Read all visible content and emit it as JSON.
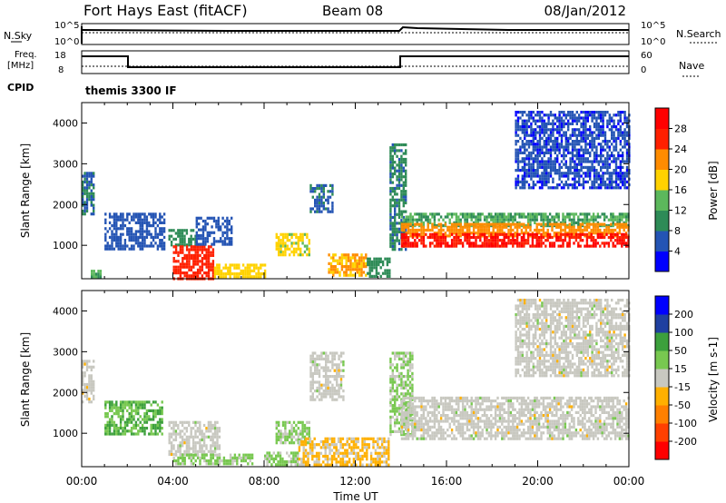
{
  "header": {
    "station": "Fort Hays East (fitACF)",
    "beam": "Beam 08",
    "date": "08/Jan/2012"
  },
  "status_panels": {
    "nsky_label": "N.Sky",
    "nsky_ticks": [
      "10^5",
      "10^0"
    ],
    "nsearch_label": "N.Search",
    "nsearch_ticks": [
      "10^5",
      "10^0"
    ],
    "freq_label_1": "Freq.",
    "freq_label_2": "[MHz]",
    "freq_ticks": [
      "18",
      "8"
    ],
    "nave_label": "Nave",
    "nave_ticks": [
      "60",
      "0"
    ],
    "cpid_label": "CPID",
    "cpid_value": "themis 3300 IF"
  },
  "chart_data": [
    {
      "type": "heatmap",
      "quantity": "Power",
      "ylabel": "Slant Range [km]",
      "colorbar_label": "Power [dB]",
      "colorbar_ticks": [
        "28",
        "24",
        "20",
        "16",
        "12",
        "8",
        "4"
      ],
      "colorbar_range": [
        0,
        32
      ],
      "colors": [
        "#0000ff",
        "#2454b4",
        "#2e8b57",
        "#5cb85c",
        "#ffd200",
        "#ff8c00",
        "#ff2000",
        "#ff0000"
      ],
      "ylim": [
        180,
        4500
      ],
      "yticks": [
        1000,
        2000,
        3000,
        4000
      ],
      "xlim": [
        0,
        24
      ],
      "regions": [
        {
          "t0": 0.0,
          "t1": 0.5,
          "r0": 1800,
          "r1": 2800,
          "value": 8
        },
        {
          "t0": 0.4,
          "t1": 0.8,
          "r0": 200,
          "r1": 400,
          "value": 12
        },
        {
          "t0": 1.0,
          "t1": 3.6,
          "r0": 900,
          "r1": 1800,
          "value": 6
        },
        {
          "t0": 3.8,
          "t1": 5.0,
          "r0": 1000,
          "r1": 1400,
          "value": 10
        },
        {
          "t0": 4.0,
          "t1": 5.8,
          "r0": 200,
          "r1": 1000,
          "value": 26
        },
        {
          "t0": 5.0,
          "t1": 6.6,
          "r0": 1000,
          "r1": 1700,
          "value": 6
        },
        {
          "t0": 5.8,
          "t1": 8.0,
          "r0": 250,
          "r1": 550,
          "value": 18
        },
        {
          "t0": 8.5,
          "t1": 10.0,
          "r0": 800,
          "r1": 1300,
          "value": 17
        },
        {
          "t0": 10.0,
          "t1": 11.0,
          "r0": 1800,
          "r1": 2500,
          "value": 7
        },
        {
          "t0": 10.8,
          "t1": 12.5,
          "r0": 300,
          "r1": 800,
          "value": 20
        },
        {
          "t0": 12.5,
          "t1": 13.5,
          "r0": 250,
          "r1": 700,
          "value": 10
        },
        {
          "t0": 13.5,
          "t1": 14.2,
          "r0": 900,
          "r1": 3500,
          "value": 9
        },
        {
          "t0": 14.0,
          "t1": 24.0,
          "r0": 1500,
          "r1": 1800,
          "value": 12
        },
        {
          "t0": 14.0,
          "t1": 24.0,
          "r0": 1250,
          "r1": 1550,
          "value": 22
        },
        {
          "t0": 14.0,
          "t1": 24.0,
          "r0": 1000,
          "r1": 1300,
          "value": 28
        },
        {
          "t0": 19.0,
          "t1": 24.0,
          "r0": 2400,
          "r1": 4300,
          "value": 5
        }
      ]
    },
    {
      "type": "heatmap",
      "quantity": "Velocity",
      "ylabel": "Slant Range [km]",
      "colorbar_label": "Velocity [m s-1]",
      "colorbar_ticks": [
        "200",
        "100",
        "50",
        "15",
        "-15",
        "-50",
        "-100",
        "-200"
      ],
      "colorbar_range": [
        -250,
        250
      ],
      "colors": [
        "#ff0000",
        "#ff4000",
        "#ff8000",
        "#ffb000",
        "#c8c8c0",
        "#78c850",
        "#3ca03c",
        "#2040a0",
        "#0000ff"
      ],
      "ylim": [
        180,
        4500
      ],
      "yticks": [
        1000,
        2000,
        3000,
        4000
      ],
      "xlim": [
        0,
        24
      ],
      "xticks": [
        "00:00",
        "04:00",
        "08:00",
        "12:00",
        "16:00",
        "20:00",
        "00:00"
      ],
      "xlabel": "Time UT",
      "regions": [
        {
          "t0": 0.0,
          "t1": 0.5,
          "r0": 1800,
          "r1": 2800,
          "value": 0
        },
        {
          "t0": 1.0,
          "t1": 3.5,
          "r0": 1000,
          "r1": 1800,
          "value": 80
        },
        {
          "t0": 3.8,
          "t1": 6.0,
          "r0": 500,
          "r1": 1300,
          "value": 0
        },
        {
          "t0": 4.0,
          "t1": 7.5,
          "r0": 250,
          "r1": 500,
          "value": 40
        },
        {
          "t0": 8.0,
          "t1": 9.5,
          "r0": 250,
          "r1": 550,
          "value": 40
        },
        {
          "t0": 8.5,
          "t1": 10.0,
          "r0": 800,
          "r1": 1300,
          "value": 40
        },
        {
          "t0": 9.5,
          "t1": 13.5,
          "r0": 250,
          "r1": 900,
          "value": -40
        },
        {
          "t0": 10.0,
          "t1": 11.5,
          "r0": 1800,
          "r1": 3000,
          "value": 0
        },
        {
          "t0": 13.5,
          "t1": 14.5,
          "r0": 1000,
          "r1": 3000,
          "value": 40
        },
        {
          "t0": 14.0,
          "t1": 24.0,
          "r0": 900,
          "r1": 1900,
          "value": 0
        },
        {
          "t0": 19.0,
          "t1": 24.0,
          "r0": 2400,
          "r1": 4300,
          "value": 0
        }
      ]
    }
  ]
}
